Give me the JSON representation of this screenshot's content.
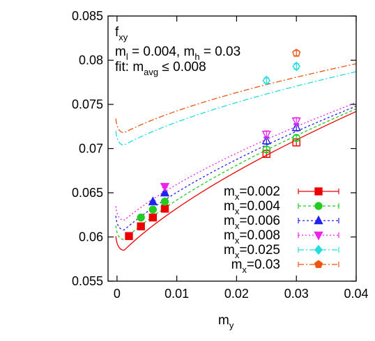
{
  "chart_data": {
    "type": "scatter",
    "title": "",
    "xlabel": "m",
    "xlabel_sub": "y",
    "ylabel": "",
    "xlim": [
      -0.0015,
      0.04
    ],
    "ylim": [
      0.055,
      0.085
    ],
    "x_ticks": [
      0,
      0.01,
      0.02,
      0.03,
      0.04
    ],
    "x_tick_labels": [
      "0",
      "0.01",
      "0.02",
      "0.03",
      "0.04"
    ],
    "y_ticks": [
      0.055,
      0.06,
      0.065,
      0.07,
      0.075,
      0.08,
      0.085
    ],
    "y_tick_labels": [
      "0.055",
      "0.06",
      "0.065",
      "0.07",
      "0.075",
      "0.08",
      "0.085"
    ],
    "grid": false,
    "legend_position": "bottom-right",
    "annotations": {
      "line1": {
        "main": "f",
        "sub": "xy"
      },
      "line2": {
        "p1": "m",
        "p1_sub": "l",
        "p2": " = 0.004, m",
        "p2_sub": "h",
        "p3": " = 0.03"
      },
      "line3": {
        "p1": "fit: m",
        "p1_sub": "avg",
        "p2": " ≤ 0.008"
      }
    },
    "series": [
      {
        "name": "m",
        "name_sub": "x",
        "name_tail": "=0.002",
        "color": "#ee0000",
        "marker": "square",
        "dash": "",
        "points": [
          {
            "x": 0.002,
            "y": 0.0601,
            "err": 0.0001,
            "filled": true
          },
          {
            "x": 0.004,
            "y": 0.0612,
            "err": 0.0001,
            "filled": true
          },
          {
            "x": 0.006,
            "y": 0.0622,
            "err": 0.0001,
            "filled": true
          },
          {
            "x": 0.008,
            "y": 0.0632,
            "err": 0.0001,
            "filled": true
          },
          {
            "x": 0.025,
            "y": 0.0694,
            "err": 0.0004,
            "filled": false
          },
          {
            "x": 0.03,
            "y": 0.0707,
            "err": 0.0004,
            "filled": false
          }
        ],
        "fit": {
          "x0": -0.0002,
          "y0": 0.0593,
          "x1": 0.04,
          "y1": 0.0742
        }
      },
      {
        "name": "m",
        "name_sub": "x",
        "name_tail": "=0.004",
        "color": "#22cc22",
        "marker": "circle",
        "dash": "4,3",
        "points": [
          {
            "x": 0.004,
            "y": 0.0622,
            "err": 0.0001,
            "filled": true
          },
          {
            "x": 0.006,
            "y": 0.0631,
            "err": 0.0001,
            "filled": true
          },
          {
            "x": 0.008,
            "y": 0.064,
            "err": 0.0001,
            "filled": true
          },
          {
            "x": 0.025,
            "y": 0.0699,
            "err": 0.0003,
            "filled": false
          },
          {
            "x": 0.03,
            "y": 0.0712,
            "err": 0.0003,
            "filled": false
          }
        ],
        "fit": {
          "x0": -0.0002,
          "y0": 0.0605,
          "x1": 0.04,
          "y1": 0.0745
        }
      },
      {
        "name": "m",
        "name_sub": "x",
        "name_tail": "=0.006",
        "color": "#2222ee",
        "marker": "triangle",
        "dash": "3,3",
        "points": [
          {
            "x": 0.006,
            "y": 0.064,
            "err": 0.0001,
            "filled": true
          },
          {
            "x": 0.008,
            "y": 0.065,
            "err": 0.0001,
            "filled": true
          },
          {
            "x": 0.025,
            "y": 0.0709,
            "err": 0.0004,
            "filled": false
          },
          {
            "x": 0.03,
            "y": 0.0724,
            "err": 0.0004,
            "filled": false
          }
        ],
        "fit": {
          "x0": -0.0002,
          "y0": 0.0616,
          "x1": 0.04,
          "y1": 0.0748
        }
      },
      {
        "name": "m",
        "name_sub": "x",
        "name_tail": "=0.008",
        "color": "#ee22ee",
        "marker": "triangle-down",
        "dash": "2,3",
        "points": [
          {
            "x": 0.008,
            "y": 0.0657,
            "err": 0.0001,
            "filled": true
          },
          {
            "x": 0.025,
            "y": 0.0716,
            "err": 0.0004,
            "filled": false
          },
          {
            "x": 0.03,
            "y": 0.0731,
            "err": 0.0004,
            "filled": false
          }
        ],
        "fit": {
          "x0": -0.0002,
          "y0": 0.0627,
          "x1": 0.04,
          "y1": 0.0752
        }
      },
      {
        "name": "m",
        "name_sub": "x",
        "name_tail": "=0.025",
        "color": "#22dddd",
        "marker": "diamond",
        "dash": "8,3,2,3",
        "points": [
          {
            "x": 0.025,
            "y": 0.0777,
            "err": 0.0003,
            "filled": false
          },
          {
            "x": 0.03,
            "y": 0.0793,
            "err": 0.0003,
            "filled": false
          }
        ],
        "fit": {
          "x0": -0.0002,
          "y0": 0.0712,
          "x1": 0.04,
          "y1": 0.0787
        }
      },
      {
        "name": "m",
        "name_sub": "x",
        "name_tail": "=0.03",
        "color": "#ee5511",
        "marker": "pentagon",
        "dash": "8,3,2,3",
        "points": [
          {
            "x": 0.03,
            "y": 0.0808,
            "err": 0.0003,
            "filled": false
          }
        ],
        "fit": {
          "x0": -0.0002,
          "y0": 0.0726,
          "x1": 0.04,
          "y1": 0.0796
        }
      }
    ]
  }
}
